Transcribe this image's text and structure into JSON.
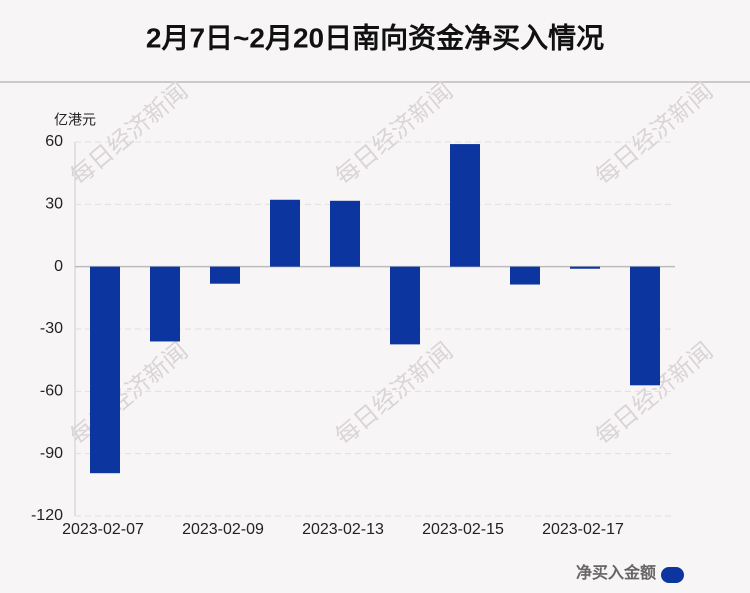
{
  "title": "2月7日~2月20日南向资金净买入情况",
  "chart_data": {
    "type": "bar",
    "y_axis_label": "亿港元",
    "categories": [
      "2023-02-07",
      null,
      "2023-02-09",
      null,
      "2023-02-13",
      null,
      "2023-02-15",
      null,
      "2023-02-17",
      null
    ],
    "series": [
      {
        "name": "净买入金额",
        "color": "#0d35a0",
        "values": [
          -99.4,
          -36,
          -8.2,
          32.2,
          31.7,
          -37.4,
          59,
          -8.6,
          -1,
          -57.1
        ]
      }
    ],
    "ylim": [
      -120,
      60
    ],
    "yticks": [
      -120,
      -90,
      -60,
      -30,
      0,
      30,
      60
    ],
    "grid": true,
    "legend": "bottom-right"
  },
  "watermark": "每日经济新闻"
}
